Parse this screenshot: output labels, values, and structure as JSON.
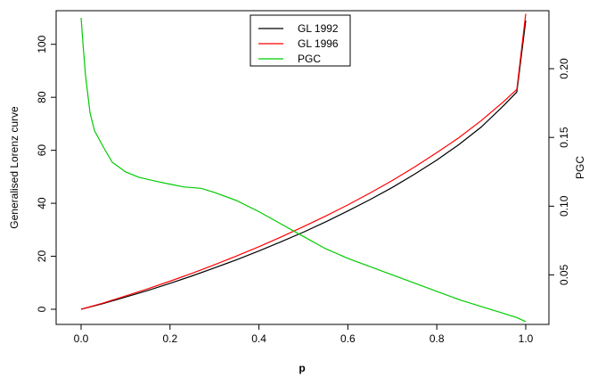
{
  "chart_data": {
    "type": "line",
    "xlabel": "p",
    "ylabel_left": "Generalised Lorenz curve",
    "ylabel_right": "PGC",
    "xlim": [
      0,
      1
    ],
    "ylim_left": [
      0,
      110
    ],
    "ylim_right": [
      0.025,
      0.24
    ],
    "x_ticks": [
      "0.0",
      "0.2",
      "0.4",
      "0.6",
      "0.8",
      "1.0"
    ],
    "y_ticks_left": [
      "0",
      "20",
      "40",
      "60",
      "80",
      "100"
    ],
    "y_ticks_right": [
      "0.05",
      "0.10",
      "0.15",
      "0.20"
    ],
    "legend_position": "top-center",
    "series": [
      {
        "name": "GL 1992",
        "axis": "left",
        "color": "#000000",
        "x": [
          0.0,
          0.05,
          0.1,
          0.15,
          0.2,
          0.25,
          0.3,
          0.35,
          0.4,
          0.45,
          0.5,
          0.55,
          0.6,
          0.65,
          0.7,
          0.75,
          0.8,
          0.85,
          0.9,
          0.95,
          0.98,
          1.0
        ],
        "y": [
          0.0,
          2.2,
          4.6,
          7.1,
          9.8,
          12.6,
          15.6,
          18.7,
          22.0,
          25.5,
          29.1,
          33.0,
          37.1,
          41.4,
          46.0,
          51.0,
          56.3,
          62.2,
          68.8,
          76.8,
          82.0,
          109.0
        ]
      },
      {
        "name": "GL 1996",
        "axis": "left",
        "color": "#ff0000",
        "x": [
          0.0,
          0.05,
          0.1,
          0.15,
          0.2,
          0.25,
          0.3,
          0.35,
          0.4,
          0.45,
          0.5,
          0.55,
          0.6,
          0.65,
          0.7,
          0.75,
          0.8,
          0.85,
          0.9,
          0.95,
          0.98,
          1.0
        ],
        "y": [
          0.0,
          2.4,
          5.0,
          7.7,
          10.6,
          13.6,
          16.8,
          20.1,
          23.6,
          27.3,
          31.2,
          35.2,
          39.4,
          43.9,
          48.6,
          53.7,
          59.1,
          64.8,
          71.2,
          78.3,
          83.0,
          111.5
        ]
      },
      {
        "name": "PGC",
        "axis": "right",
        "color": "#00cc00",
        "x": [
          0.0,
          0.005,
          0.01,
          0.02,
          0.03,
          0.05,
          0.07,
          0.1,
          0.13,
          0.17,
          0.2,
          0.23,
          0.27,
          0.3,
          0.35,
          0.4,
          0.45,
          0.5,
          0.55,
          0.6,
          0.65,
          0.7,
          0.75,
          0.8,
          0.85,
          0.9,
          0.95,
          0.98,
          1.0
        ],
        "y": [
          0.237,
          0.215,
          0.195,
          0.168,
          0.155,
          0.143,
          0.132,
          0.125,
          0.121,
          0.118,
          0.116,
          0.114,
          0.113,
          0.11,
          0.104,
          0.096,
          0.087,
          0.078,
          0.069,
          0.062,
          0.056,
          0.05,
          0.044,
          0.038,
          0.032,
          0.027,
          0.022,
          0.019,
          0.016
        ]
      }
    ]
  }
}
